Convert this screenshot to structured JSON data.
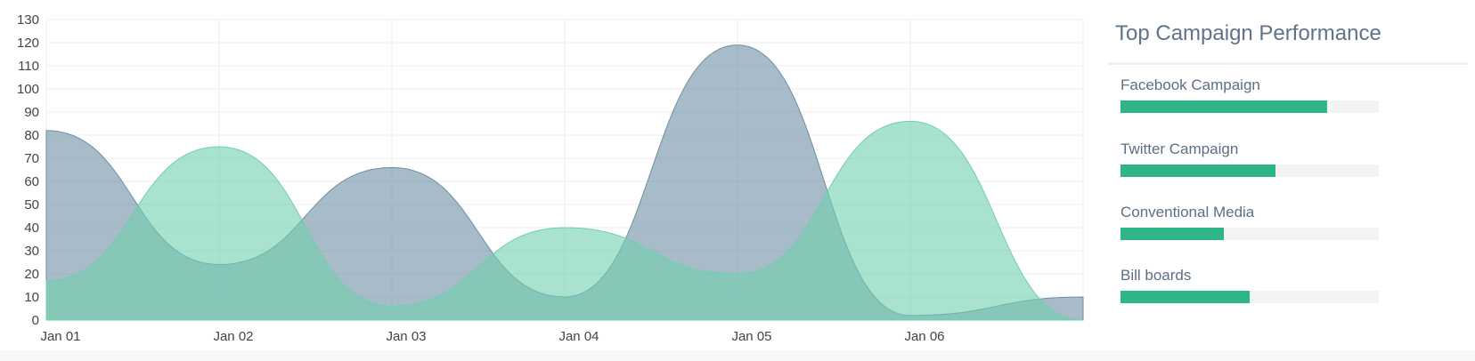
{
  "chart_data": {
    "type": "area",
    "x": [
      "Jan 01",
      "Jan 02",
      "Jan 03",
      "Jan 04",
      "Jan 05",
      "Jan 06",
      ""
    ],
    "categories": [
      "Jan 01",
      "Jan 02",
      "Jan 03",
      "Jan 04",
      "Jan 05",
      "Jan 06"
    ],
    "series": [
      {
        "values": [
          82,
          24,
          66,
          10,
          119,
          2,
          10
        ],
        "color": "#6d8ea3"
      },
      {
        "values": [
          17,
          75,
          6,
          40,
          20,
          86,
          0
        ],
        "color": "#6fcfae"
      }
    ],
    "ylim": [
      0,
      130
    ],
    "yticks": [
      0,
      10,
      20,
      30,
      40,
      50,
      60,
      70,
      80,
      90,
      100,
      110,
      120,
      130
    ],
    "grid": true,
    "title": "",
    "xlabel": "",
    "ylabel": ""
  },
  "panel": {
    "title": "Top Campaign Performance",
    "campaigns": [
      {
        "label": "Facebook Campaign",
        "progress": 0.8
      },
      {
        "label": "Twitter Campaign",
        "progress": 0.6
      },
      {
        "label": "Conventional Media",
        "progress": 0.4
      },
      {
        "label": "Bill boards",
        "progress": 0.5
      }
    ],
    "accent_color": "#2fb58a"
  }
}
